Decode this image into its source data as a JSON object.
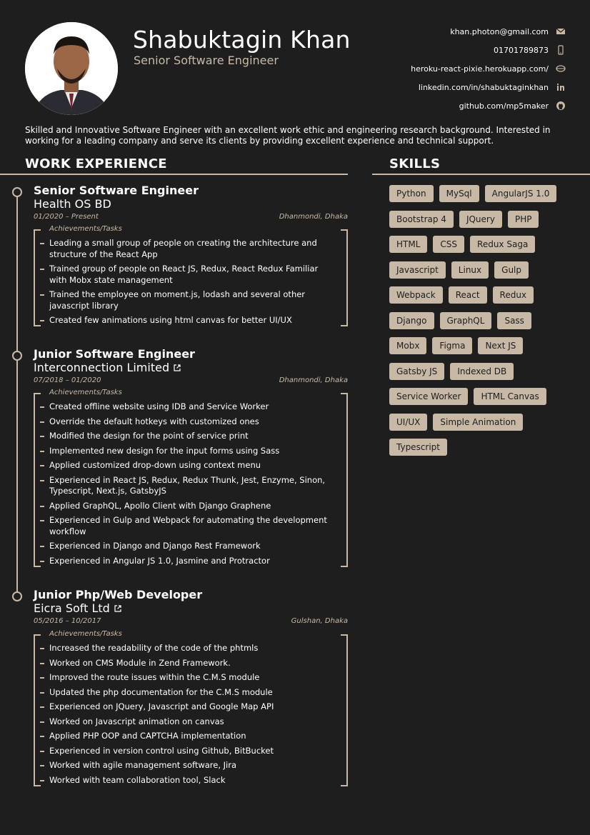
{
  "header": {
    "name": "Shabuktagin Khan",
    "role": "Senior Software Engineer",
    "contacts": [
      {
        "text": "khan.photon@gmail.com",
        "icon": "envelope-icon"
      },
      {
        "text": "01701789873",
        "icon": "phone-icon"
      },
      {
        "text": "heroku-react-pixie.herokuapp.com/",
        "icon": "globe-icon"
      },
      {
        "text": "linkedin.com/in/shabuktaginkhan",
        "icon": "linkedin-icon"
      },
      {
        "text": "github.com/mp5maker",
        "icon": "github-icon"
      }
    ]
  },
  "summary": "Skilled and Innovative Software Engineer with an excellent work ethic and engineering research background. Interested in working for a leading company and serve its clients by providing excellent experience and technical support.",
  "sections": {
    "work": "WORK EXPERIENCE",
    "skills": "SKILLS"
  },
  "jobs": [
    {
      "title": "Senior Software Engineer",
      "company": "Health OS BD",
      "dates": "01/2020 – Present",
      "location": "Dhanmondi, Dhaka",
      "tasks_label": "Achievements/Tasks",
      "tasks": [
        "Leading a small group of people on creating the architecture and structure of the React App",
        "Trained group of people on React JS, Redux, React Redux Familiar with Mobx state management",
        "Trained the employee on moment.js, lodash and several other javascript library",
        "Created few animations using html canvas for better UI/UX"
      ]
    },
    {
      "title": "Junior Software Engineer",
      "company": "Interconnection Limited",
      "dates": "07/2018 – 01/2020",
      "location": "Dhanmondi, Dhaka",
      "tasks_label": "Achievements/Tasks",
      "tasks": [
        "Created offline website using IDB and Service Worker",
        "Override the default hotkeys with customized ones",
        "Modified the design for the point of service print",
        "Implemented new design for the input forms using Sass",
        "Applied customized drop-down using context menu",
        "Experienced in React JS, Redux, Redux Thunk, Jest, Enzyme, Sinon, Typescript, Next.js, GatsbyJS",
        "Applied GraphQL, Apollo Client with Django Graphene",
        "Experienced in Gulp and Webpack for automating the development workflow",
        "Experienced in Django and Django Rest Framework",
        "Experienced in Angular JS 1.0, Jasmine and Protractor"
      ]
    },
    {
      "title": "Junior Php/Web Developer",
      "company": "Eicra Soft Ltd",
      "dates": "05/2016 – 10/2017",
      "location": "Gulshan, Dhaka",
      "tasks_label": "Achievements/Tasks",
      "tasks": [
        "Increased the readability of the code of the phtmls",
        "Worked on CMS Module in Zend Framework.",
        "Improved the route issues within the C.M.S module",
        "Updated the php documentation for the C.M.S module",
        "Experienced on JQuery, Javascript and Google Map API",
        "Worked on Javascript animation on canvas",
        "Applied PHP OOP and CAPTCHA implementation",
        "Experienced in version control using Github, BitBucket",
        "Worked with agile management software, Jira",
        "Worked with team collaboration tool, Slack"
      ]
    }
  ],
  "skills": [
    [
      "Python",
      "MySql",
      "AngularJS 1.0"
    ],
    [
      "Bootstrap 4",
      "JQuery",
      "PHP"
    ],
    [
      "HTML",
      "CSS",
      "Redux Saga"
    ],
    [
      "Javascript",
      "Linux",
      "Gulp"
    ],
    [
      "Webpack",
      "React",
      "Redux"
    ],
    [
      "Django",
      "GraphQL",
      "Sass"
    ],
    [
      "Mobx",
      "Figma",
      "Next JS"
    ],
    [
      "Gatsby JS",
      "Indexed DB"
    ],
    [
      "Service Worker",
      "HTML Canvas"
    ],
    [
      "UI/UX",
      "Simple Animation"
    ],
    [
      "Typescript"
    ]
  ],
  "colors": {
    "background": "#1e1e1e",
    "accent": "#c8b9a6",
    "text": "#ffffff"
  }
}
